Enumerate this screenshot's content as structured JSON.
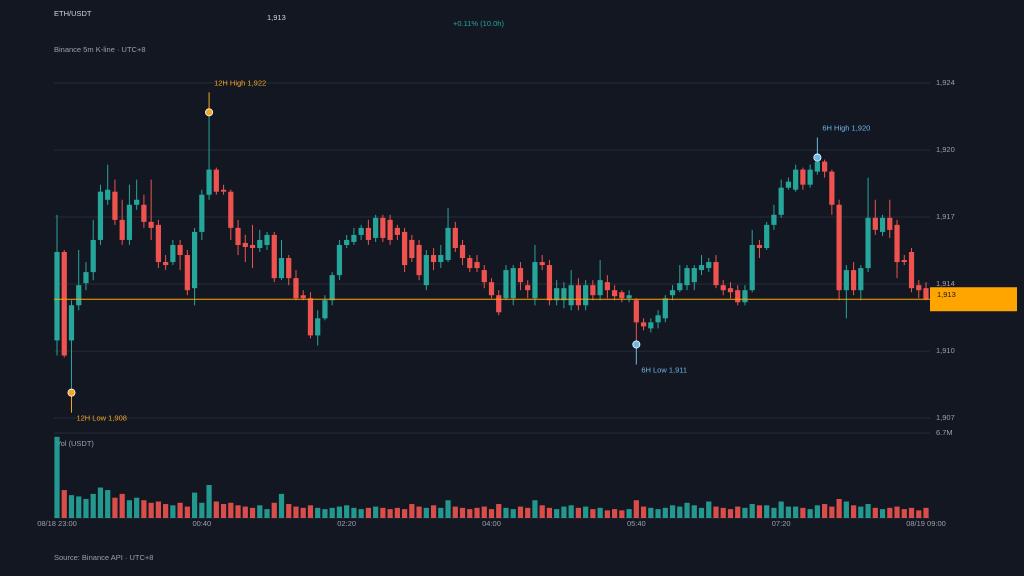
{
  "chart_data": {
    "type": "candlestick",
    "title": "ETH/USDT",
    "price_label": "1,913",
    "change": "+0.11% (10.0h)",
    "subtitle": "Binance 5m K-line · UTC+8",
    "source": "Source: Binance API · UTC+8",
    "volume_label": "Vol (USDT)",
    "up_color": "#26a69a",
    "down_color": "#ef5350",
    "last_price_color": "#ffa500",
    "grid": true,
    "categories": [
      "08/18 23:00",
      null,
      null,
      null,
      null,
      null,
      null,
      null,
      null,
      null,
      null,
      null,
      null,
      null,
      null,
      null,
      null,
      null,
      null,
      null,
      "00:40",
      null,
      null,
      null,
      null,
      null,
      null,
      null,
      null,
      null,
      null,
      null,
      null,
      null,
      null,
      null,
      null,
      null,
      null,
      null,
      "02:20",
      null,
      null,
      null,
      null,
      null,
      null,
      null,
      null,
      null,
      null,
      null,
      null,
      null,
      null,
      null,
      null,
      null,
      null,
      null,
      "04:00",
      null,
      null,
      null,
      null,
      null,
      null,
      null,
      null,
      null,
      null,
      null,
      null,
      null,
      null,
      null,
      null,
      null,
      null,
      null,
      "05:40",
      null,
      null,
      null,
      null,
      null,
      null,
      null,
      null,
      null,
      null,
      null,
      null,
      null,
      null,
      null,
      null,
      null,
      null,
      null,
      "07:20",
      null,
      null,
      null,
      null,
      null,
      null,
      null,
      null,
      null,
      null,
      null,
      null,
      null,
      null,
      null,
      null,
      null,
      null,
      null,
      "08/19 09:00"
    ],
    "open": [
      1910.86,
      1915.26,
      1910.86,
      1912.61,
      1913.71,
      1914.26,
      1915.86,
      1917.86,
      1918.26,
      1916.86,
      1915.86,
      1917.61,
      1917.61,
      1916.76,
      1916.61,
      1914.76,
      1914.76,
      1915.61,
      1915.11,
      1913.46,
      1916.26,
      1918.11,
      1919.36,
      1918.36,
      1918.26,
      1916.46,
      1915.71,
      1915.61,
      1915.46,
      1915.61,
      1916.11,
      1913.96,
      1914.96,
      1913.96,
      1913.11,
      1912.96,
      1911.11,
      1911.96,
      1912.86,
      1914.11,
      1915.61,
      1915.76,
      1916.11,
      1916.46,
      1915.96,
      1916.96,
      1916.86,
      1916.46,
      1916.26,
      1915.86,
      1915.61,
      1913.61,
      1915.11,
      1914.76,
      1914.86,
      1916.46,
      1915.61,
      1914.96,
      1914.76,
      1914.36,
      1913.76,
      1913.11,
      1912.96,
      1912.96,
      1914.46,
      1913.61,
      1912.96,
      1914.76,
      1914.61,
      1912.86,
      1912.86,
      1912.61,
      1913.61,
      1912.61,
      1913.61,
      1913.11,
      1913.76,
      1913.36,
      1913.26,
      1912.96,
      1912.86,
      1911.76,
      1911.46,
      1911.76,
      1911.96,
      1913.11,
      1913.36,
      1913.61,
      1913.76,
      1914.36,
      1914.46,
      1914.76,
      1913.61,
      1913.46,
      1913.36,
      1912.76,
      1913.36,
      1915.61,
      1915.46,
      1916.61,
      1917.11,
      1918.46,
      1918.36,
      1919.36,
      1918.61,
      1919.26,
      1919.76,
      1919.26,
      1917.61,
      1913.36,
      1914.36,
      1913.36,
      1914.46,
      1916.96,
      1916.26,
      1916.96,
      1916.61,
      1914.86,
      1915.26,
      1913.61,
      1913.46
    ],
    "close": [
      1915.26,
      1910.11,
      1912.61,
      1913.61,
      1914.26,
      1915.86,
      1918.26,
      1918.36,
      1916.86,
      1915.86,
      1917.61,
      1917.86,
      1916.76,
      1916.46,
      1914.76,
      1914.61,
      1915.61,
      1915.11,
      1913.36,
      1916.26,
      1918.11,
      1919.36,
      1918.26,
      1918.26,
      1916.46,
      1915.61,
      1915.51,
      1915.46,
      1915.86,
      1916.11,
      1913.96,
      1914.96,
      1913.96,
      1912.96,
      1912.96,
      1911.11,
      1911.96,
      1912.86,
      1914.11,
      1915.61,
      1915.86,
      1916.11,
      1916.46,
      1915.86,
      1916.96,
      1915.96,
      1915.86,
      1916.11,
      1914.61,
      1914.96,
      1914.11,
      1915.11,
      1914.76,
      1915.11,
      1916.46,
      1915.46,
      1914.96,
      1914.46,
      1914.46,
      1913.76,
      1913.11,
      1912.26,
      1914.36,
      1914.46,
      1913.76,
      1913.36,
      1914.76,
      1914.61,
      1912.86,
      1913.46,
      1913.46,
      1913.61,
      1912.61,
      1913.61,
      1913.11,
      1913.86,
      1913.36,
      1913.06,
      1912.96,
      1913.11,
      1911.76,
      1911.56,
      1911.76,
      1912.11,
      1912.96,
      1913.36,
      1913.71,
      1914.46,
      1914.46,
      1914.61,
      1914.76,
      1913.61,
      1913.36,
      1913.26,
      1912.76,
      1913.36,
      1915.61,
      1915.46,
      1916.61,
      1917.11,
      1918.46,
      1918.76,
      1919.36,
      1918.61,
      1919.36,
      1919.76,
      1919.26,
      1917.61,
      1913.36,
      1914.36,
      1913.36,
      1914.46,
      1916.96,
      1916.36,
      1916.96,
      1916.36,
      1914.76,
      1914.76,
      1913.46,
      1913.36,
      1912.91
    ],
    "high": [
      1917.11,
      1915.36,
      1912.86,
      1915.36,
      1914.76,
      1916.86,
      1918.61,
      1919.61,
      1918.86,
      1917.86,
      1918.61,
      1918.86,
      1918.11,
      1918.86,
      1916.86,
      1915.11,
      1915.86,
      1915.86,
      1915.36,
      1916.46,
      1918.36,
      1922.21,
      1919.46,
      1918.61,
      1918.36,
      1916.86,
      1916.11,
      1916.61,
      1916.36,
      1916.26,
      1916.26,
      1915.86,
      1915.11,
      1914.36,
      1913.36,
      1913.26,
      1912.36,
      1913.11,
      1914.26,
      1915.86,
      1916.11,
      1916.46,
      1916.61,
      1916.86,
      1917.11,
      1917.11,
      1917.11,
      1916.61,
      1916.46,
      1916.11,
      1915.86,
      1915.36,
      1915.46,
      1915.61,
      1917.46,
      1916.76,
      1915.86,
      1915.11,
      1915.11,
      1914.61,
      1913.96,
      1913.36,
      1914.61,
      1914.61,
      1914.76,
      1913.86,
      1915.61,
      1915.11,
      1914.86,
      1913.86,
      1913.76,
      1914.36,
      1913.96,
      1913.86,
      1913.86,
      1914.86,
      1914.11,
      1913.61,
      1913.36,
      1913.36,
      1912.96,
      1911.96,
      1911.96,
      1912.36,
      1913.11,
      1913.61,
      1914.61,
      1914.61,
      1914.61,
      1915.11,
      1914.96,
      1915.11,
      1913.86,
      1913.76,
      1913.61,
      1913.61,
      1916.36,
      1915.86,
      1916.76,
      1917.61,
      1918.86,
      1918.96,
      1919.61,
      1919.46,
      1919.61,
      1919.96,
      1919.86,
      1919.36,
      1917.86,
      1914.61,
      1914.76,
      1914.61,
      1918.96,
      1917.86,
      1917.11,
      1917.86,
      1916.86,
      1915.11,
      1915.46,
      1913.86,
      1913.76
    ],
    "low": [
      1910.11,
      1910.01,
      1908.26,
      1912.36,
      1913.36,
      1913.86,
      1915.61,
      1917.61,
      1916.61,
      1915.61,
      1915.61,
      1917.36,
      1916.46,
      1915.86,
      1914.46,
      1914.36,
      1914.61,
      1914.36,
      1913.11,
      1912.61,
      1915.86,
      1917.86,
      1918.11,
      1918.11,
      1915.86,
      1915.11,
      1914.76,
      1914.46,
      1915.26,
      1915.36,
      1913.76,
      1913.86,
      1913.61,
      1912.86,
      1912.86,
      1910.96,
      1910.61,
      1911.86,
      1912.61,
      1913.86,
      1915.46,
      1915.61,
      1915.86,
      1915.61,
      1915.76,
      1915.76,
      1915.61,
      1915.86,
      1914.26,
      1914.76,
      1913.86,
      1913.36,
      1914.36,
      1914.46,
      1914.76,
      1915.26,
      1914.61,
      1914.26,
      1914.26,
      1913.46,
      1912.96,
      1912.11,
      1912.86,
      1912.61,
      1913.36,
      1912.96,
      1912.61,
      1914.36,
      1912.61,
      1912.61,
      1912.46,
      1912.36,
      1912.36,
      1912.36,
      1912.86,
      1912.86,
      1912.96,
      1912.86,
      1912.76,
      1912.76,
      1910.66,
      1911.36,
      1911.26,
      1911.46,
      1911.76,
      1912.86,
      1913.26,
      1913.36,
      1913.36,
      1914.11,
      1914.26,
      1913.46,
      1913.11,
      1912.96,
      1912.61,
      1912.61,
      1913.26,
      1914.96,
      1915.36,
      1916.36,
      1916.96,
      1918.36,
      1918.26,
      1918.36,
      1918.46,
      1919.11,
      1918.96,
      1917.11,
      1912.86,
      1911.96,
      1913.11,
      1912.86,
      1914.26,
      1916.11,
      1916.06,
      1915.96,
      1913.96,
      1914.61,
      1913.26,
      1912.96,
      1912.86
    ],
    "volume": [
      6400000,
      2200000,
      1800000,
      1700000,
      1500000,
      1900000,
      2400000,
      2200000,
      1600000,
      1900000,
      1400000,
      1600000,
      1400000,
      1200000,
      1300000,
      1100000,
      1000000,
      1200000,
      900000,
      2000000,
      1200000,
      2600000,
      1300000,
      1100000,
      1200000,
      1000000,
      900000,
      800000,
      1000000,
      700000,
      1200000,
      1900000,
      1100000,
      900000,
      800000,
      1000000,
      800000,
      700000,
      800000,
      900000,
      1000000,
      800000,
      700000,
      800000,
      900000,
      800000,
      700000,
      800000,
      700000,
      1100000,
      900000,
      800000,
      1000000,
      800000,
      1400000,
      900000,
      800000,
      700000,
      800000,
      900000,
      700000,
      1100000,
      800000,
      700000,
      900000,
      800000,
      1400000,
      1000000,
      800000,
      700000,
      900000,
      1000000,
      800000,
      900000,
      700000,
      800000,
      600000,
      700000,
      600000,
      700000,
      1400000,
      900000,
      800000,
      700000,
      800000,
      1000000,
      900000,
      1200000,
      1000000,
      800000,
      1300000,
      900000,
      800000,
      700000,
      900000,
      800000,
      1100000,
      1000000,
      1000000,
      800000,
      1300000,
      900000,
      900000,
      800000,
      700000,
      1000000,
      1100000,
      900000,
      1500000,
      1300000,
      1000000,
      900000,
      1100000,
      800000,
      700000,
      800000,
      900000,
      700000,
      800000,
      600000,
      800000
    ],
    "ylim": [
      1907,
      1923.67
    ],
    "yticks": [
      {
        "value": 1923.67,
        "label": "1,924"
      },
      {
        "value": 1920.33,
        "label": "1,920"
      },
      {
        "value": 1917,
        "label": "1,917"
      },
      {
        "value": 1913.67,
        "label": "1,914"
      },
      {
        "value": 1910.33,
        "label": "1,910"
      },
      {
        "value": 1907,
        "label": "1,907"
      }
    ],
    "volume_lim": [
      0,
      6700000
    ],
    "volume_ticks": [
      {
        "value": 6700000,
        "label": "6.7M"
      }
    ],
    "annotations": [
      {
        "text": "12H High 1,922",
        "color": "#f5a623"
      },
      {
        "text": "12H Low 1,908",
        "color": "#f5a623"
      },
      {
        "text": "6H High 1,920",
        "color": "#6cb8e6"
      },
      {
        "text": "6H Low 1,911",
        "color": "#6cb8e6"
      }
    ]
  }
}
